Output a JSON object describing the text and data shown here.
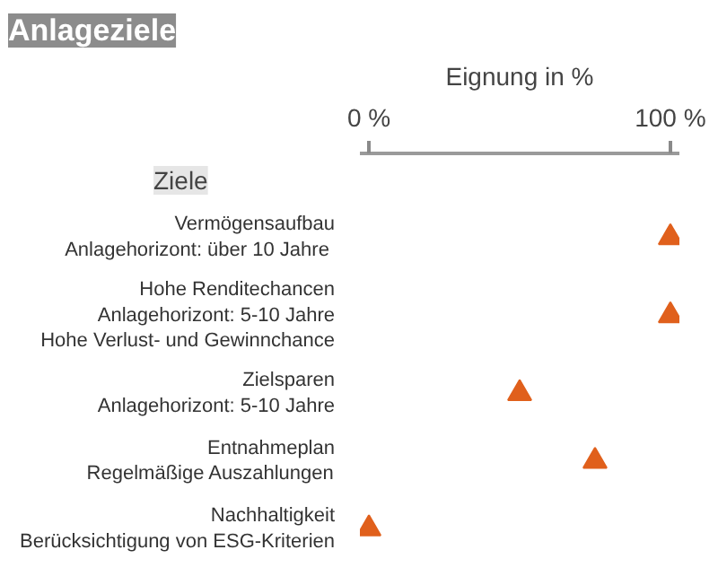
{
  "chart_data": {
    "type": "scatter",
    "orientation": "horizontal",
    "title": "Anlageziele",
    "xlabel": "Eignung in %",
    "ylabel": "Ziele",
    "categories": [
      "Vermögensaufbau\nAnlagehorizont:  über 10 Jahre",
      "Hohe Renditechancen\nAnlagehorizont: 5-10 Jahre\nHohe Verlust- und Gewinnchance",
      "Zielsparen\nAnlagehorizont: 5-10 Jahre",
      "Entnahmeplan\nRegelmäßige Auszahlungen",
      "Nachhaltigkeit\nBerücksichtigung von ESG-Kriterien"
    ],
    "series": [
      {
        "color": "#e0601c",
        "values": [
          100,
          100,
          50,
          75,
          0
        ]
      }
    ],
    "xlim": [
      -3,
      103
    ],
    "xticks": [
      {
        "value": 0,
        "label": "0 %"
      },
      {
        "value": 100,
        "label": "100 %"
      }
    ],
    "marker": "triangle",
    "grid": false
  }
}
